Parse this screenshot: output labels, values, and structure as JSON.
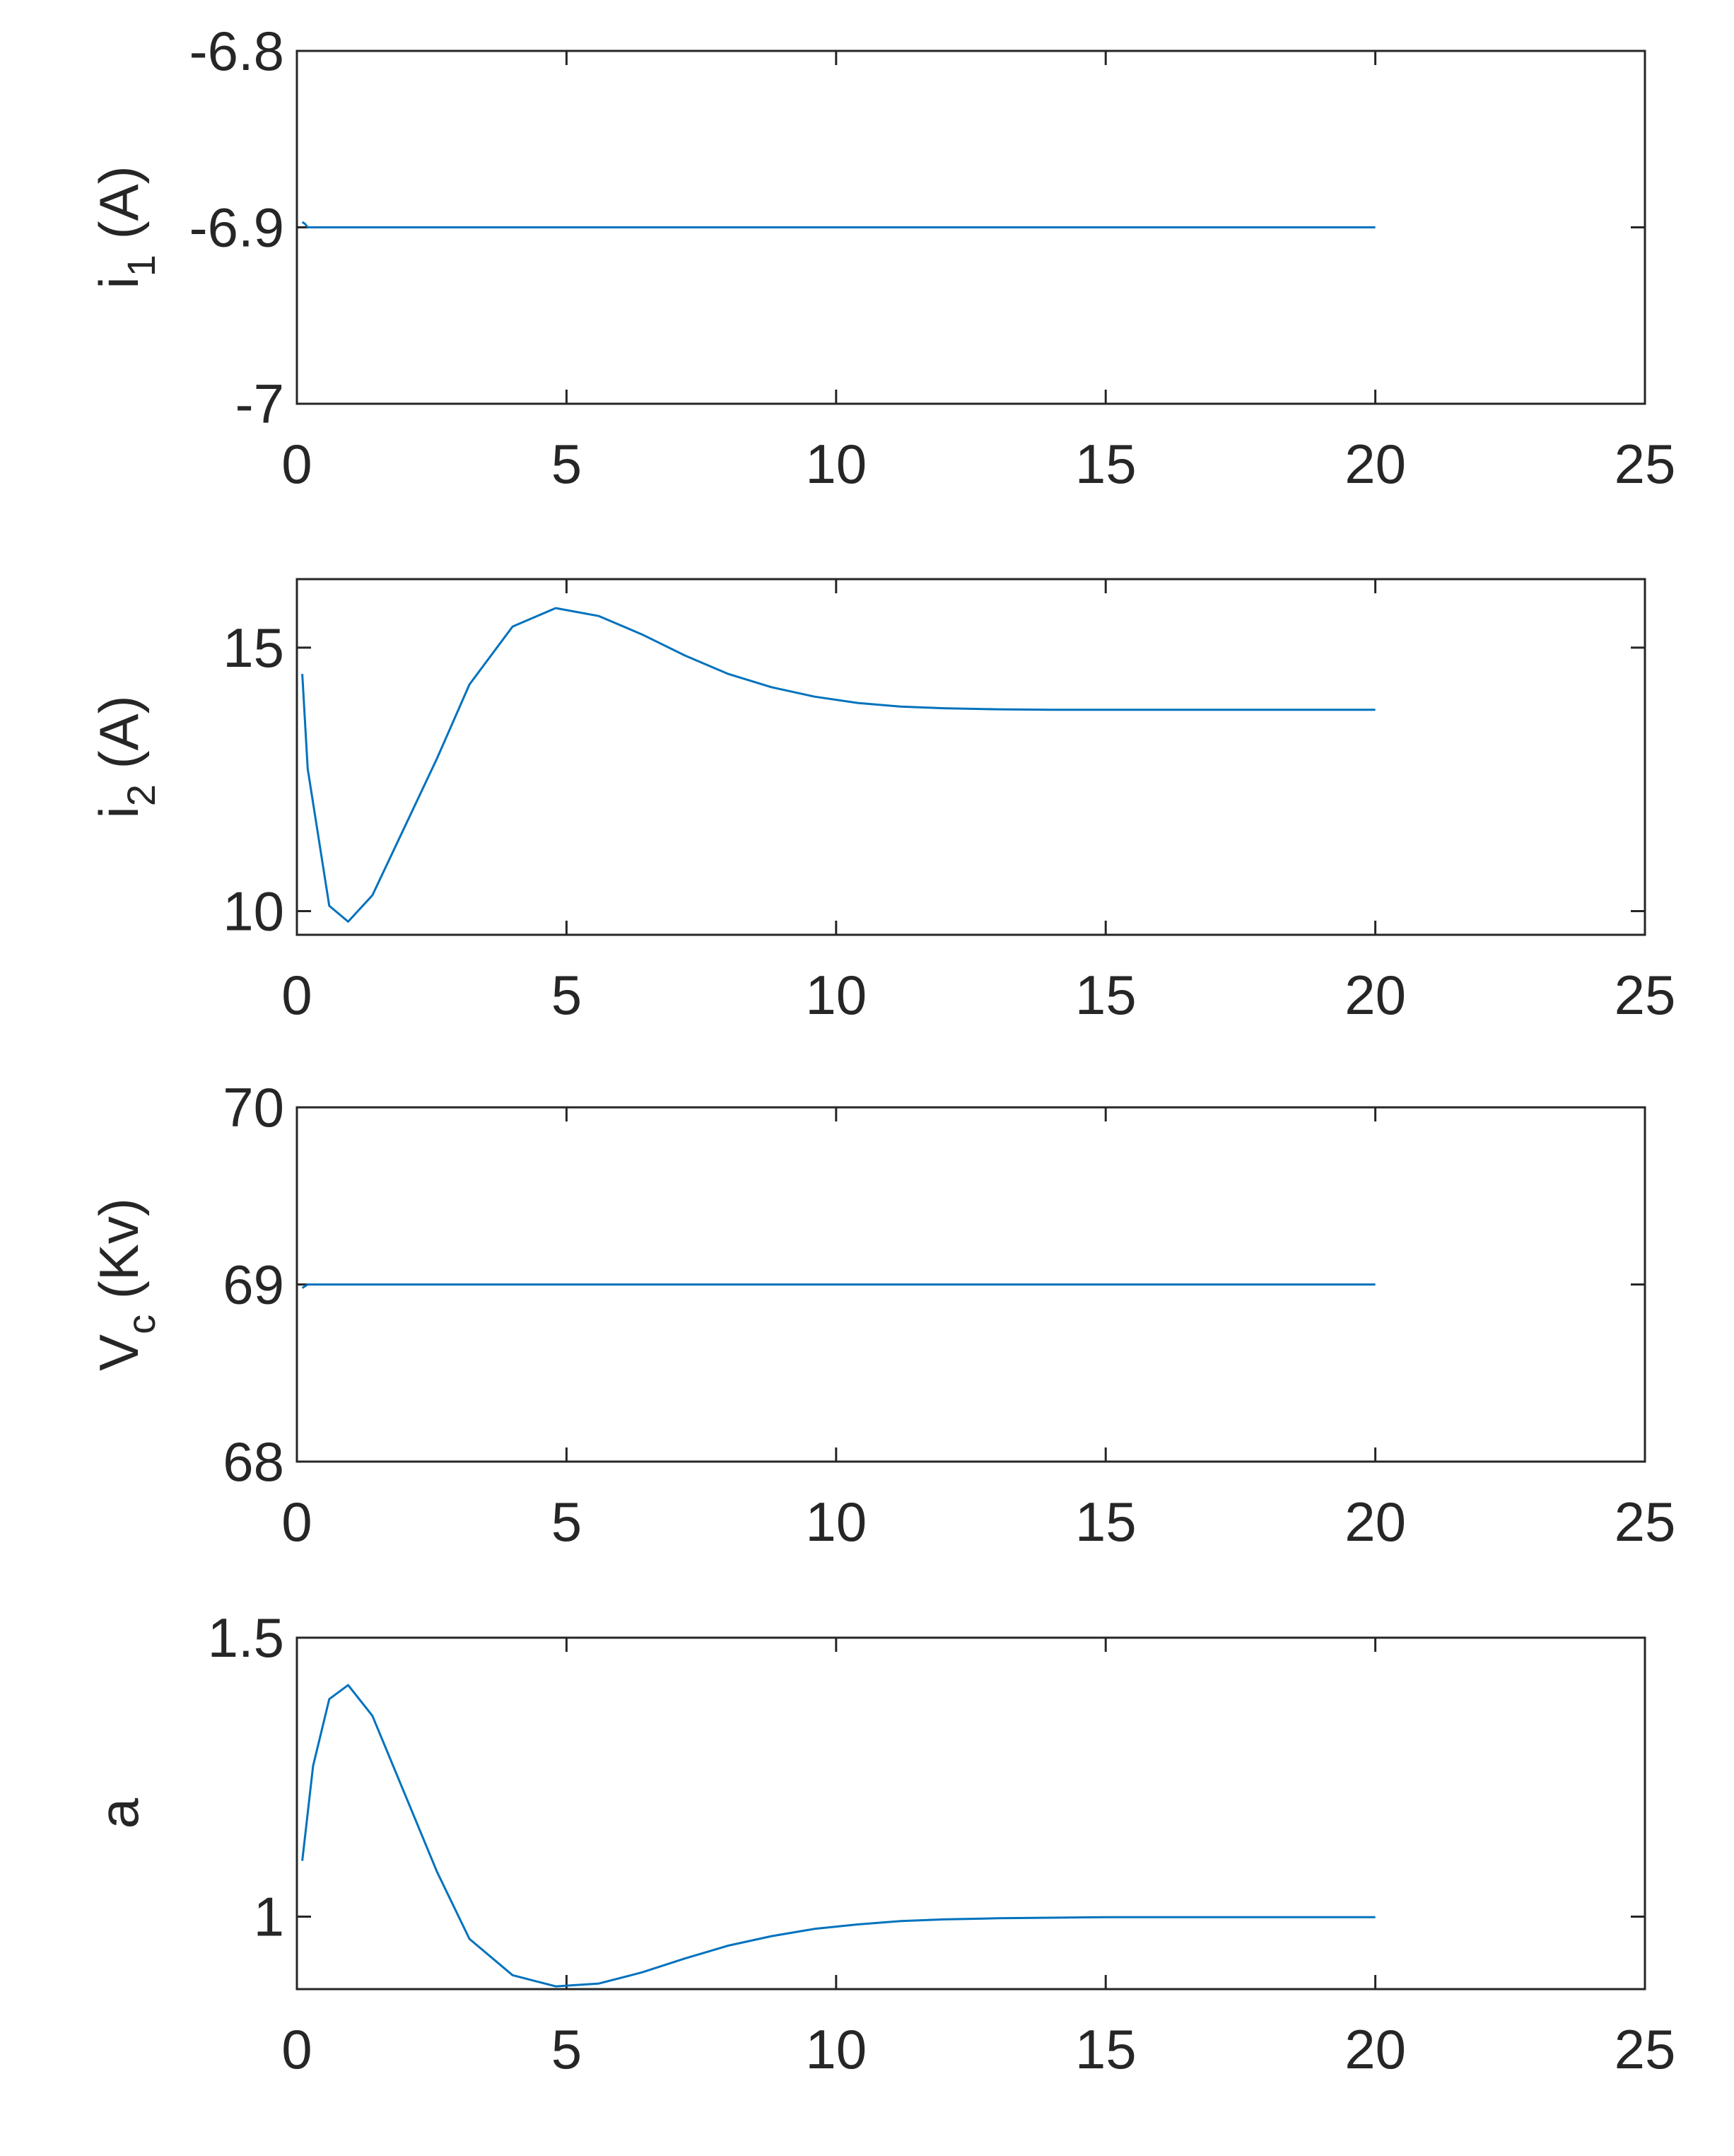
{
  "chart_data": [
    {
      "type": "line",
      "ylabel": "i",
      "ylabel_sub": "1",
      "ylabel_unit": " (A)",
      "xlim": [
        0,
        25
      ],
      "ylim": [
        -7,
        -6.8
      ],
      "xticks": [
        "0",
        "5",
        "10",
        "15",
        "20",
        "25"
      ],
      "yticks": [
        "-6.8",
        "-6.9",
        "-7"
      ],
      "ytick_values": [
        -6.8,
        -6.9,
        -7
      ],
      "series": [
        {
          "color": "#0072BD",
          "x": [
            0.1,
            0.15,
            0.2,
            20
          ],
          "y": [
            -6.897,
            -6.898,
            -6.9,
            -6.9
          ]
        }
      ]
    },
    {
      "type": "line",
      "ylabel": "i",
      "ylabel_sub": "2",
      "ylabel_unit": " (A)",
      "xlim": [
        0,
        25
      ],
      "ylim": [
        9.55,
        16.3
      ],
      "xticks": [
        "0",
        "5",
        "10",
        "15",
        "20",
        "25"
      ],
      "yticks": [
        "15",
        "10"
      ],
      "ytick_values": [
        15,
        10
      ],
      "series": [
        {
          "color": "#0072BD",
          "x": [
            0.1,
            0.2,
            0.6,
            0.95,
            1.4,
            2.0,
            2.6,
            3.2,
            4.0,
            4.8,
            5.6,
            6.4,
            7.2,
            8.0,
            8.8,
            9.6,
            10.4,
            11.2,
            12.0,
            13.0,
            14.0,
            15.0,
            16.0,
            17.0,
            18.0,
            19.0,
            20.0
          ],
          "y": [
            14.5,
            12.7,
            10.1,
            9.8,
            10.3,
            11.6,
            12.9,
            14.3,
            15.4,
            15.75,
            15.6,
            15.25,
            14.85,
            14.5,
            14.25,
            14.07,
            13.95,
            13.88,
            13.85,
            13.83,
            13.82,
            13.82,
            13.82,
            13.82,
            13.82,
            13.82,
            13.82
          ]
        }
      ]
    },
    {
      "type": "line",
      "ylabel": "V",
      "ylabel_sub": "c",
      "ylabel_unit": " (Kv)",
      "xlim": [
        0,
        25
      ],
      "ylim": [
        68,
        70
      ],
      "xticks": [
        "0",
        "5",
        "10",
        "15",
        "20",
        "25"
      ],
      "yticks": [
        "70",
        "69",
        "68"
      ],
      "ytick_values": [
        70,
        69,
        68
      ],
      "series": [
        {
          "color": "#0072BD",
          "x": [
            0.1,
            0.15,
            0.2,
            20
          ],
          "y": [
            68.98,
            68.99,
            69.0,
            69.0
          ]
        }
      ]
    },
    {
      "type": "line",
      "ylabel": "a",
      "ylabel_sub": "",
      "ylabel_unit": "",
      "xlim": [
        0,
        25
      ],
      "ylim": [
        0.87,
        1.5
      ],
      "xticks": [
        "0",
        "5",
        "10",
        "15",
        "20",
        "25"
      ],
      "yticks": [
        "1.5",
        "1"
      ],
      "ytick_values": [
        1.5,
        1
      ],
      "series": [
        {
          "color": "#0072BD",
          "x": [
            0.1,
            0.3,
            0.6,
            0.95,
            1.4,
            2.0,
            2.6,
            3.2,
            4.0,
            4.8,
            5.6,
            6.4,
            7.2,
            8.0,
            8.8,
            9.6,
            10.4,
            11.2,
            12.0,
            13.0,
            14.0,
            15.0,
            16.0,
            17.0,
            18.0,
            19.0,
            20.0
          ],
          "y": [
            1.1,
            1.27,
            1.39,
            1.415,
            1.36,
            1.22,
            1.08,
            0.96,
            0.895,
            0.875,
            0.88,
            0.9,
            0.925,
            0.948,
            0.965,
            0.978,
            0.986,
            0.992,
            0.995,
            0.997,
            0.998,
            0.999,
            0.999,
            0.999,
            0.999,
            0.999,
            0.999
          ]
        }
      ]
    }
  ]
}
